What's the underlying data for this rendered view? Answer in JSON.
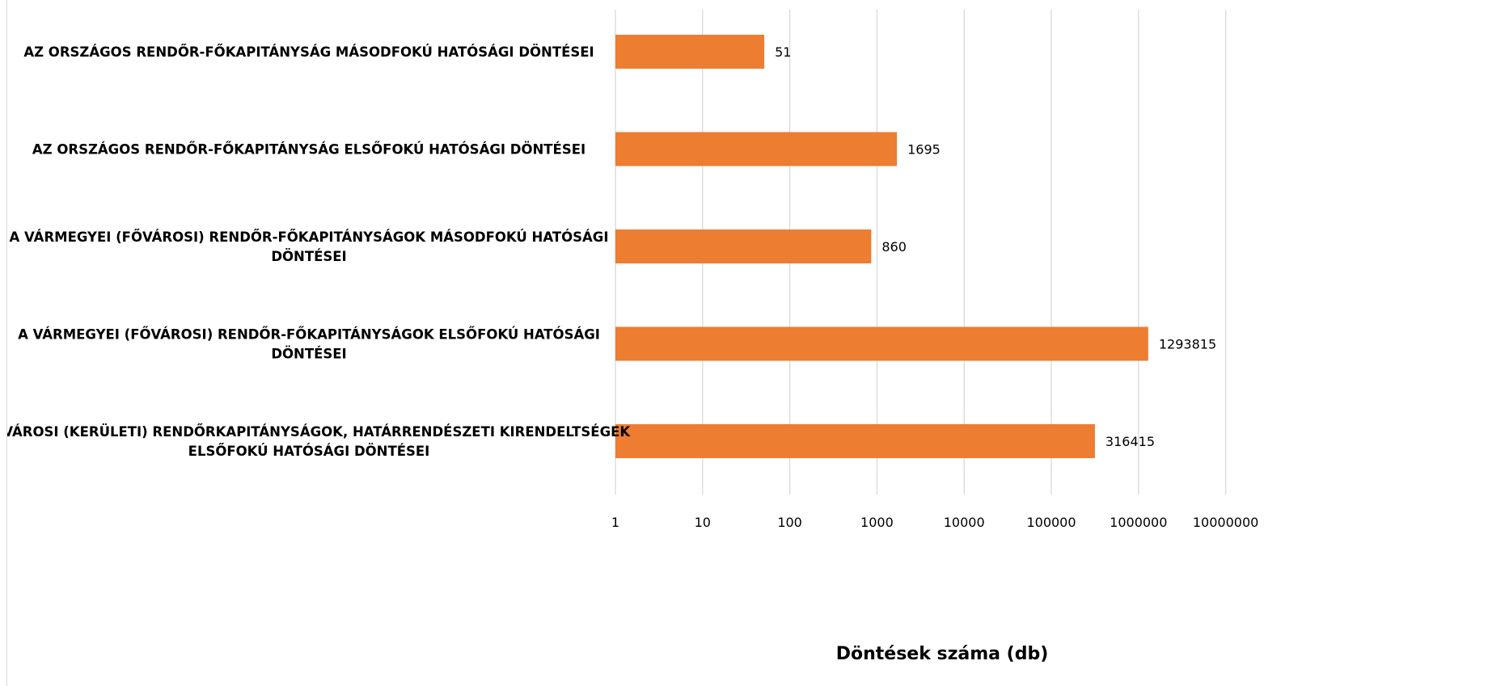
{
  "chart_data": {
    "type": "bar",
    "orientation": "horizontal",
    "x_scale": "log",
    "xlim": [
      1,
      10000000
    ],
    "grid": true,
    "legend": "none",
    "xlabel": "Döntések száma (db)",
    "bar_color": "#ED7D31",
    "categories": [
      [
        "AZ ORSZÁGOS RENDŐR-FŐKAPITÁNYSÁG MÁSODFOKÚ HATÓSÁGI DÖNTÉSEI"
      ],
      [
        "AZ ORSZÁGOS RENDŐR-FŐKAPITÁNYSÁG ELSŐFOKÚ HATÓSÁGI DÖNTÉSEI"
      ],
      [
        "A VÁRMEGYEI (FŐVÁROSI) RENDŐR-FŐKAPITÁNYSÁGOK MÁSODFOKÚ HATÓSÁGI",
        "DÖNTÉSEI"
      ],
      [
        "A VÁRMEGYEI (FŐVÁROSI) RENDŐR-FŐKAPITÁNYSÁGOK ELSŐFOKÚ HATÓSÁGI",
        "DÖNTÉSEI"
      ],
      [
        "A VÁROSI (KERÜLETI) RENDŐRKAPITÁNYSÁGOK, HATÁRRENDÉSZETI KIRENDELTSÉGEK",
        "ELSŐFOKÚ HATÓSÁGI DÖNTÉSEI"
      ]
    ],
    "values": [
      51,
      1695,
      860,
      1293815,
      316415
    ],
    "tick_labels": [
      "1",
      "10",
      "100",
      "1000",
      "10000",
      "100000",
      "1000000",
      "10000000"
    ]
  }
}
